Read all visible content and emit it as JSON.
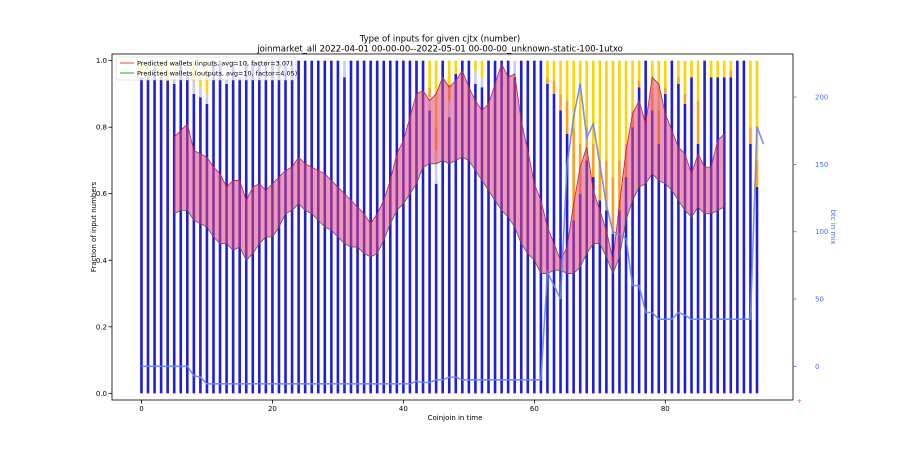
{
  "chart_data": {
    "type": "bar",
    "title_line1": "Type of inputs for given cjtx (number)",
    "title_line2": "joinmarket_all 2022-04-01 00-00-00--2022-05-01 00-00-00_unknown-static-100-1utxo",
    "xlabel": "Coinjoin in time",
    "ylabel": "Fraction of input numbers",
    "y2label": "btc in mix",
    "xlim": [
      -4.5,
      99.5
    ],
    "ylim": [
      -0.02,
      1.02
    ],
    "y2lim": [
      -25,
      232
    ],
    "xticks": [
      0,
      20,
      40,
      60,
      80
    ],
    "yticks": [
      "0.0",
      "0.2",
      "0.4",
      "0.6",
      "0.8",
      "1.0"
    ],
    "y2ticks": [
      0,
      50,
      100,
      150,
      200
    ],
    "colors": {
      "blue_bar": "#1f1fd6",
      "light_bar": "#c9cdf0",
      "yellow_bar": "#ffd400",
      "orange_bar": "#ff9f1a",
      "brown_bar": "#8b3a14",
      "btc_line": "#6a86e8",
      "axis2": "#4a6ee8",
      "fill": "#e0457b",
      "fill2": "#f4a8a8"
    },
    "legend": [
      {
        "label": "Predicted wallets (inputs, avg=10, factor=3.07)",
        "color": "#e8453c"
      },
      {
        "label": "Predicted wallets (outputs, avg=10, factor=4.05)",
        "color": "#2ca02c"
      }
    ],
    "bar_x": [
      0,
      1,
      2,
      3,
      4,
      5,
      6,
      7,
      8,
      9,
      10,
      11,
      12,
      13,
      14,
      15,
      16,
      17,
      18,
      19,
      20,
      21,
      22,
      23,
      24,
      25,
      26,
      27,
      28,
      29,
      30,
      31,
      32,
      33,
      34,
      35,
      36,
      37,
      38,
      39,
      40,
      41,
      42,
      43,
      44,
      45,
      46,
      47,
      48,
      49,
      50,
      51,
      52,
      53,
      54,
      55,
      56,
      57,
      58,
      59,
      60,
      61,
      62,
      63,
      64,
      65,
      66,
      67,
      68,
      69,
      70,
      71,
      72,
      73,
      74,
      75,
      76,
      77,
      78,
      79,
      80,
      81,
      82,
      83,
      84,
      85,
      86,
      87,
      88,
      89,
      90,
      91,
      92,
      93,
      94,
      95
    ],
    "bar_blue": [
      0.95,
      0.95,
      0.98,
      0.95,
      0.94,
      0.93,
      1.0,
      0.96,
      0.9,
      0.89,
      0.87,
      1.0,
      1.0,
      0.93,
      1.0,
      0.95,
      1.0,
      1.0,
      1.0,
      1.0,
      1.0,
      1.0,
      1.0,
      1.0,
      1.0,
      1.0,
      1.0,
      1.0,
      1.0,
      1.0,
      1.0,
      0.95,
      1.0,
      1.0,
      1.0,
      1.0,
      1.0,
      1.0,
      1.0,
      1.0,
      1.0,
      1.0,
      1.0,
      1.0,
      0.85,
      0.63,
      1.0,
      0.83,
      0.96,
      1.0,
      1.0,
      0.93,
      0.92,
      1.0,
      1.0,
      1.0,
      1.0,
      0.95,
      1.0,
      1.0,
      1.0,
      1.0,
      0.93,
      0.9,
      0.85,
      0.78,
      0.52,
      0.6,
      0.7,
      0.65,
      0.58,
      0.55,
      0.48,
      0.55,
      0.65,
      0.8,
      0.92,
      1.0,
      0.85,
      0.75,
      0.9,
      1.0,
      0.93,
      0.87,
      0.95,
      0.75,
      1.0,
      0.95,
      0.95,
      0.95,
      0.95,
      1.0,
      1.0,
      0.75,
      0.62,
      0.0
    ],
    "bar_light": [
      0.0,
      0.0,
      0.0,
      0.0,
      0.0,
      0.02,
      0.0,
      0.02,
      0.04,
      0.03,
      0.03,
      0.0,
      0.0,
      0.07,
      0.0,
      0.05,
      0.0,
      0.0,
      0.0,
      0.0,
      0.0,
      0.0,
      0.0,
      0.0,
      0.0,
      0.0,
      0.0,
      0.0,
      0.0,
      0.0,
      0.0,
      0.05,
      0.0,
      0.0,
      0.0,
      0.0,
      0.0,
      0.0,
      0.0,
      0.0,
      0.0,
      0.0,
      0.0,
      0.0,
      0.04,
      0.1,
      0.0,
      0.05,
      0.0,
      0.0,
      0.0,
      0.04,
      0.03,
      0.0,
      0.0,
      0.0,
      0.0,
      0.05,
      0.0,
      0.0,
      0.0,
      0.0,
      0.0,
      0.0,
      0.0,
      0.0,
      0.0,
      0.0,
      0.0,
      0.0,
      0.0,
      0.0,
      0.0,
      0.0,
      0.0,
      0.0,
      0.0,
      0.0,
      0.0,
      0.0,
      0.0,
      0.0,
      0.0,
      0.0,
      0.0,
      0.0,
      0.0,
      0.0,
      0.0,
      0.0,
      0.0,
      0.0,
      0.0,
      0.0,
      0.0,
      0.0
    ],
    "bar_yellow": [
      0.05,
      0.05,
      0.02,
      0.05,
      0.06,
      0.05,
      0.0,
      0.02,
      0.06,
      0.05,
      0.1,
      0.0,
      0.0,
      0.0,
      0.0,
      0.0,
      0.0,
      0.0,
      0.0,
      0.0,
      0.0,
      0.0,
      0.0,
      0.0,
      0.0,
      0.0,
      0.0,
      0.0,
      0.0,
      0.0,
      0.0,
      0.0,
      0.0,
      0.0,
      0.0,
      0.0,
      0.0,
      0.0,
      0.0,
      0.0,
      0.0,
      0.0,
      0.0,
      0.0,
      0.08,
      0.2,
      0.0,
      0.07,
      0.04,
      0.0,
      0.0,
      0.03,
      0.05,
      0.0,
      0.0,
      0.0,
      0.0,
      0.0,
      0.0,
      0.0,
      0.0,
      0.0,
      0.05,
      0.06,
      0.1,
      0.12,
      0.2,
      0.25,
      0.2,
      0.25,
      0.3,
      0.3,
      0.35,
      0.3,
      0.25,
      0.15,
      0.06,
      0.0,
      0.1,
      0.15,
      0.08,
      0.0,
      0.05,
      0.1,
      0.05,
      0.12,
      0.0,
      0.05,
      0.05,
      0.05,
      0.03,
      0.0,
      0.0,
      0.2,
      0.3,
      0.0
    ],
    "bar_orange": [
      0.0,
      0.0,
      0.0,
      0.0,
      0.0,
      0.0,
      0.0,
      0.0,
      0.0,
      0.0,
      0.0,
      0.0,
      0.0,
      0.0,
      0.0,
      0.0,
      0.0,
      0.0,
      0.0,
      0.0,
      0.0,
      0.0,
      0.0,
      0.0,
      0.0,
      0.0,
      0.0,
      0.0,
      0.0,
      0.0,
      0.0,
      0.0,
      0.0,
      0.0,
      0.0,
      0.0,
      0.0,
      0.0,
      0.0,
      0.0,
      0.0,
      0.0,
      0.0,
      0.0,
      0.03,
      0.07,
      0.0,
      0.05,
      0.0,
      0.0,
      0.0,
      0.0,
      0.0,
      0.0,
      0.0,
      0.0,
      0.0,
      0.0,
      0.0,
      0.0,
      0.0,
      0.0,
      0.02,
      0.04,
      0.05,
      0.1,
      0.28,
      0.15,
      0.1,
      0.1,
      0.12,
      0.15,
      0.17,
      0.15,
      0.1,
      0.05,
      0.02,
      0.0,
      0.05,
      0.1,
      0.02,
      0.0,
      0.02,
      0.03,
      0.0,
      0.13,
      0.0,
      0.0,
      0.0,
      0.0,
      0.02,
      0.0,
      0.0,
      0.05,
      0.08,
      0.0
    ],
    "bar_brown": [
      0.0,
      0.0,
      0.0,
      0.0,
      0.0,
      0.0,
      0.0,
      0.0,
      0.0,
      0.0,
      0.0,
      0.0,
      0.0,
      0.0,
      0.0,
      0.0,
      0.0,
      0.0,
      0.0,
      0.0,
      0.0,
      0.0,
      0.0,
      0.0,
      0.0,
      0.0,
      0.0,
      0.0,
      0.0,
      0.0,
      0.0,
      0.0,
      0.0,
      0.0,
      0.0,
      0.0,
      0.0,
      0.0,
      0.0,
      0.0,
      0.0,
      0.0,
      0.0,
      0.0,
      0.0,
      0.0,
      0.0,
      0.0,
      0.0,
      0.0,
      0.0,
      0.0,
      0.0,
      0.0,
      0.0,
      0.0,
      0.0,
      0.0,
      0.0,
      0.0,
      0.0,
      0.0,
      0.0,
      0.0,
      0.0,
      0.0,
      0.0,
      0.0,
      0.0,
      0.0,
      0.0,
      0.0,
      0.0,
      0.0,
      0.0,
      0.0,
      0.0,
      0.0,
      0.0,
      0.0,
      0.0,
      0.0,
      0.0,
      0.0,
      0.0,
      0.0,
      0.0,
      0.0,
      0.0,
      0.0,
      0.0,
      0.0,
      0.0,
      0.0,
      0.0,
      0.0
    ],
    "upper_band_x": [
      5,
      6,
      7,
      8,
      9,
      10,
      11,
      12,
      13,
      14,
      15,
      16,
      17,
      18,
      19,
      20,
      21,
      22,
      23,
      24,
      25,
      26,
      27,
      28,
      29,
      30,
      31,
      32,
      33,
      34,
      35,
      36,
      37,
      38,
      39,
      40,
      41,
      42,
      43,
      44,
      45,
      46,
      47,
      48,
      49,
      50,
      51,
      52,
      53,
      54,
      55,
      56,
      57,
      58,
      59,
      60,
      61,
      62,
      63,
      64,
      65,
      66,
      67,
      68,
      69,
      70,
      71,
      72,
      73,
      74,
      75,
      76,
      77,
      78,
      79,
      80,
      81,
      82,
      83,
      84,
      85,
      86,
      87,
      88,
      89
    ],
    "upper_band": [
      0.77,
      0.79,
      0.81,
      0.73,
      0.72,
      0.71,
      0.68,
      0.66,
      0.62,
      0.64,
      0.64,
      0.58,
      0.62,
      0.63,
      0.61,
      0.63,
      0.65,
      0.67,
      0.68,
      0.71,
      0.69,
      0.68,
      0.67,
      0.66,
      0.64,
      0.62,
      0.6,
      0.58,
      0.56,
      0.54,
      0.51,
      0.54,
      0.58,
      0.64,
      0.72,
      0.76,
      0.83,
      0.9,
      0.91,
      0.88,
      0.9,
      0.95,
      0.92,
      0.94,
      0.97,
      0.92,
      0.88,
      0.85,
      0.87,
      0.93,
      0.99,
      0.95,
      0.96,
      0.82,
      0.73,
      0.63,
      0.58,
      0.5,
      0.45,
      0.4,
      0.44,
      0.57,
      0.68,
      0.74,
      0.61,
      0.55,
      0.49,
      0.4,
      0.57,
      0.73,
      0.84,
      0.88,
      0.81,
      0.95,
      0.93,
      0.84,
      0.79,
      0.74,
      0.72,
      0.66,
      0.72,
      0.68,
      0.68,
      0.76,
      0.78
    ],
    "lower_band": [
      0.54,
      0.55,
      0.55,
      0.52,
      0.51,
      0.5,
      0.47,
      0.45,
      0.45,
      0.43,
      0.44,
      0.4,
      0.42,
      0.45,
      0.47,
      0.47,
      0.5,
      0.54,
      0.55,
      0.57,
      0.55,
      0.54,
      0.52,
      0.5,
      0.49,
      0.47,
      0.45,
      0.44,
      0.44,
      0.42,
      0.41,
      0.42,
      0.46,
      0.51,
      0.55,
      0.57,
      0.6,
      0.63,
      0.68,
      0.69,
      0.69,
      0.7,
      0.69,
      0.7,
      0.71,
      0.7,
      0.67,
      0.64,
      0.61,
      0.58,
      0.55,
      0.53,
      0.5,
      0.45,
      0.42,
      0.4,
      0.36,
      0.36,
      0.37,
      0.37,
      0.36,
      0.36,
      0.38,
      0.42,
      0.45,
      0.45,
      0.41,
      0.36,
      0.41,
      0.52,
      0.58,
      0.62,
      0.63,
      0.66,
      0.64,
      0.63,
      0.61,
      0.58,
      0.55,
      0.53,
      0.56,
      0.54,
      0.54,
      0.55,
      0.56
    ],
    "btc_x": [
      0,
      1,
      2,
      3,
      4,
      5,
      6,
      7,
      8,
      9,
      10,
      11,
      12,
      13,
      14,
      15,
      16,
      17,
      18,
      19,
      20,
      21,
      22,
      23,
      24,
      25,
      26,
      27,
      28,
      29,
      30,
      31,
      32,
      33,
      34,
      35,
      36,
      37,
      38,
      39,
      40,
      41,
      42,
      43,
      44,
      45,
      46,
      47,
      48,
      49,
      50,
      51,
      52,
      53,
      54,
      55,
      56,
      57,
      58,
      59,
      60,
      61,
      62,
      63,
      64,
      65,
      66,
      67,
      68,
      69,
      70,
      71,
      72,
      73,
      74,
      75,
      76,
      77,
      78,
      79,
      80,
      81,
      82,
      83,
      84,
      85,
      86,
      87,
      88,
      89,
      90,
      91,
      92,
      93,
      94,
      95
    ],
    "btc": [
      0,
      0,
      0,
      0,
      0,
      0,
      0,
      0,
      -7,
      -8,
      -13,
      -13,
      -13,
      -13,
      -13,
      -13,
      -13,
      -13,
      -13,
      -13,
      -13,
      -13,
      -13,
      -13,
      -13,
      -13,
      -13,
      -13,
      -13,
      -13,
      -13,
      -13,
      -13,
      -13,
      -13,
      -13,
      -13,
      -13,
      -13,
      -13,
      -13,
      -13,
      -11,
      -12,
      -12,
      -10,
      -10,
      -8,
      -8,
      -10,
      -10,
      -10,
      -10,
      -10,
      -10,
      -10,
      -10,
      -10,
      -10,
      -10,
      -10,
      -10,
      70,
      60,
      50,
      150,
      185,
      210,
      170,
      180,
      150,
      120,
      100,
      98,
      95,
      60,
      60,
      40,
      40,
      35,
      35,
      35,
      40,
      38,
      35,
      35,
      35,
      35,
      35,
      35,
      35,
      35,
      35,
      35,
      178,
      165
    ]
  }
}
